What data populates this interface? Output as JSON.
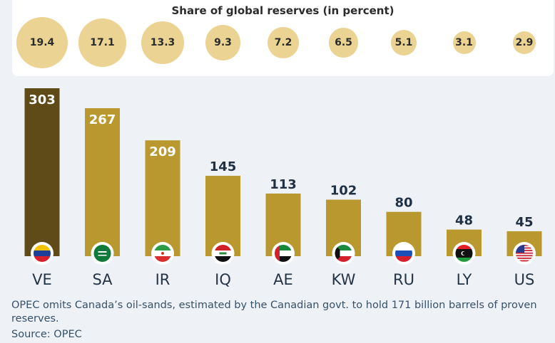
{
  "share_panel": {
    "title": "Share of global reserves (in percent)",
    "values": [
      "19.4",
      "17.1",
      "13.3",
      "9.3",
      "7.2",
      "6.5",
      "5.1",
      "3.1",
      "2.9"
    ]
  },
  "chart_data": {
    "type": "bar",
    "categories": [
      "VE",
      "SA",
      "IR",
      "IQ",
      "AE",
      "KW",
      "RU",
      "LY",
      "US"
    ],
    "values": [
      303,
      267,
      209,
      145,
      113,
      102,
      80,
      48,
      45
    ],
    "share_percent": [
      19.4,
      17.1,
      13.3,
      9.3,
      7.2,
      6.5,
      5.1,
      3.1,
      2.9
    ],
    "ylim": [
      0,
      303
    ],
    "grid": false,
    "colors": {
      "highlight_bar": "#5e4b18",
      "bar": "#b8982f",
      "bubble": "#ebd393",
      "value_on_bar": "#ffffff",
      "value_above_bar": "#1f3044"
    },
    "flags": [
      "venezuela-flag-icon",
      "saudi-arabia-flag-icon",
      "iran-flag-icon",
      "iraq-flag-icon",
      "uae-flag-icon",
      "kuwait-flag-icon",
      "russia-flag-icon",
      "libya-flag-icon",
      "usa-flag-icon"
    ]
  },
  "footnote": "OPEC omits Canada’s oil-sands, estimated by the Canadian govt. to hold 171 billion barrels of proven reserves.",
  "source": "Source: OPEC"
}
